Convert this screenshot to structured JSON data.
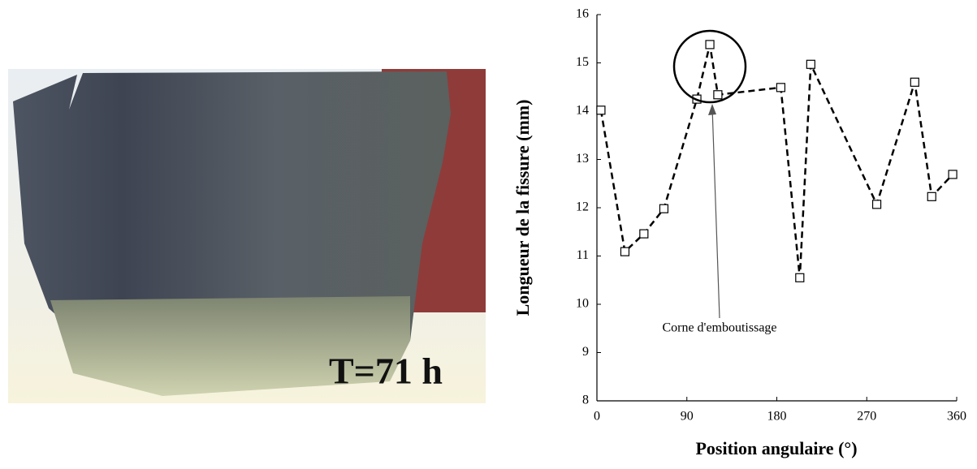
{
  "photo_label": "T=71 h",
  "chart_data": {
    "type": "line",
    "xlabel": "Position angulaire (°)",
    "ylabel": "Longueur de la fissure (mm)",
    "annotation": "Corne d'emboutissage",
    "x": [
      4,
      28,
      47,
      67,
      100,
      113,
      121,
      184,
      203,
      214,
      280,
      318,
      335,
      356
    ],
    "series": [
      {
        "color": "#000000",
        "values": [
          14.02,
          11.09,
          11.46,
          11.98,
          14.25,
          15.38,
          14.34,
          14.49,
          10.55,
          14.97,
          12.07,
          14.6,
          12.23,
          12.69
        ]
      }
    ],
    "xlim": [
      0,
      360
    ],
    "xticks": [
      0,
      90,
      180,
      270,
      360
    ],
    "ylim": [
      8,
      16
    ],
    "yticks": [
      8,
      9,
      10,
      11,
      12,
      13,
      14,
      15,
      16
    ]
  }
}
